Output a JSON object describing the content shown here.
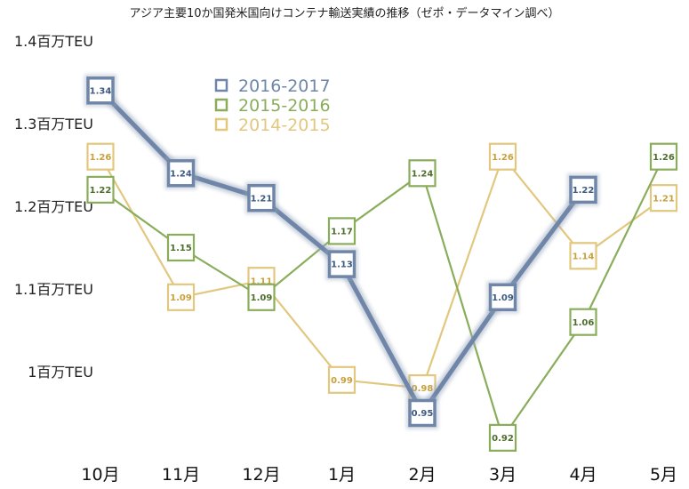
{
  "chart_data": {
    "type": "line",
    "title": "アジア主要10か国発米国向けコンテナ輸送実績の推移（ゼポ・データマイン調べ）",
    "categories": [
      "10月",
      "11月",
      "12月",
      "1月",
      "2月",
      "3月",
      "4月",
      "5月"
    ],
    "ylim": [
      0.85,
      1.45
    ],
    "yticks": [
      {
        "value": 1.4,
        "label": "1.4百万TEU"
      },
      {
        "value": 1.3,
        "label": "1.3百万TEU"
      },
      {
        "value": 1.2,
        "label": "1.2百万TEU"
      },
      {
        "value": 1.1,
        "label": "1.1百万TEU"
      },
      {
        "value": 1.0,
        "label": "1百万TEU"
      }
    ],
    "grid": false,
    "legend_position": "top-left",
    "series": [
      {
        "name": "2014-2015",
        "color": "#e2c77e",
        "label_color": "#c9a13c",
        "values": [
          1.26,
          1.09,
          1.11,
          0.99,
          0.98,
          1.26,
          1.14,
          1.21
        ]
      },
      {
        "name": "2015-2016",
        "color": "#8aad5c",
        "label_color": "#4f6e2c",
        "values": [
          1.22,
          1.15,
          1.09,
          1.17,
          1.24,
          0.92,
          1.06,
          1.26
        ]
      },
      {
        "name": "2016-2017",
        "color": "#6f86a8",
        "label_color": "#3e5a80",
        "values": [
          1.34,
          1.24,
          1.21,
          1.13,
          0.95,
          1.09,
          1.22,
          null
        ]
      }
    ]
  }
}
